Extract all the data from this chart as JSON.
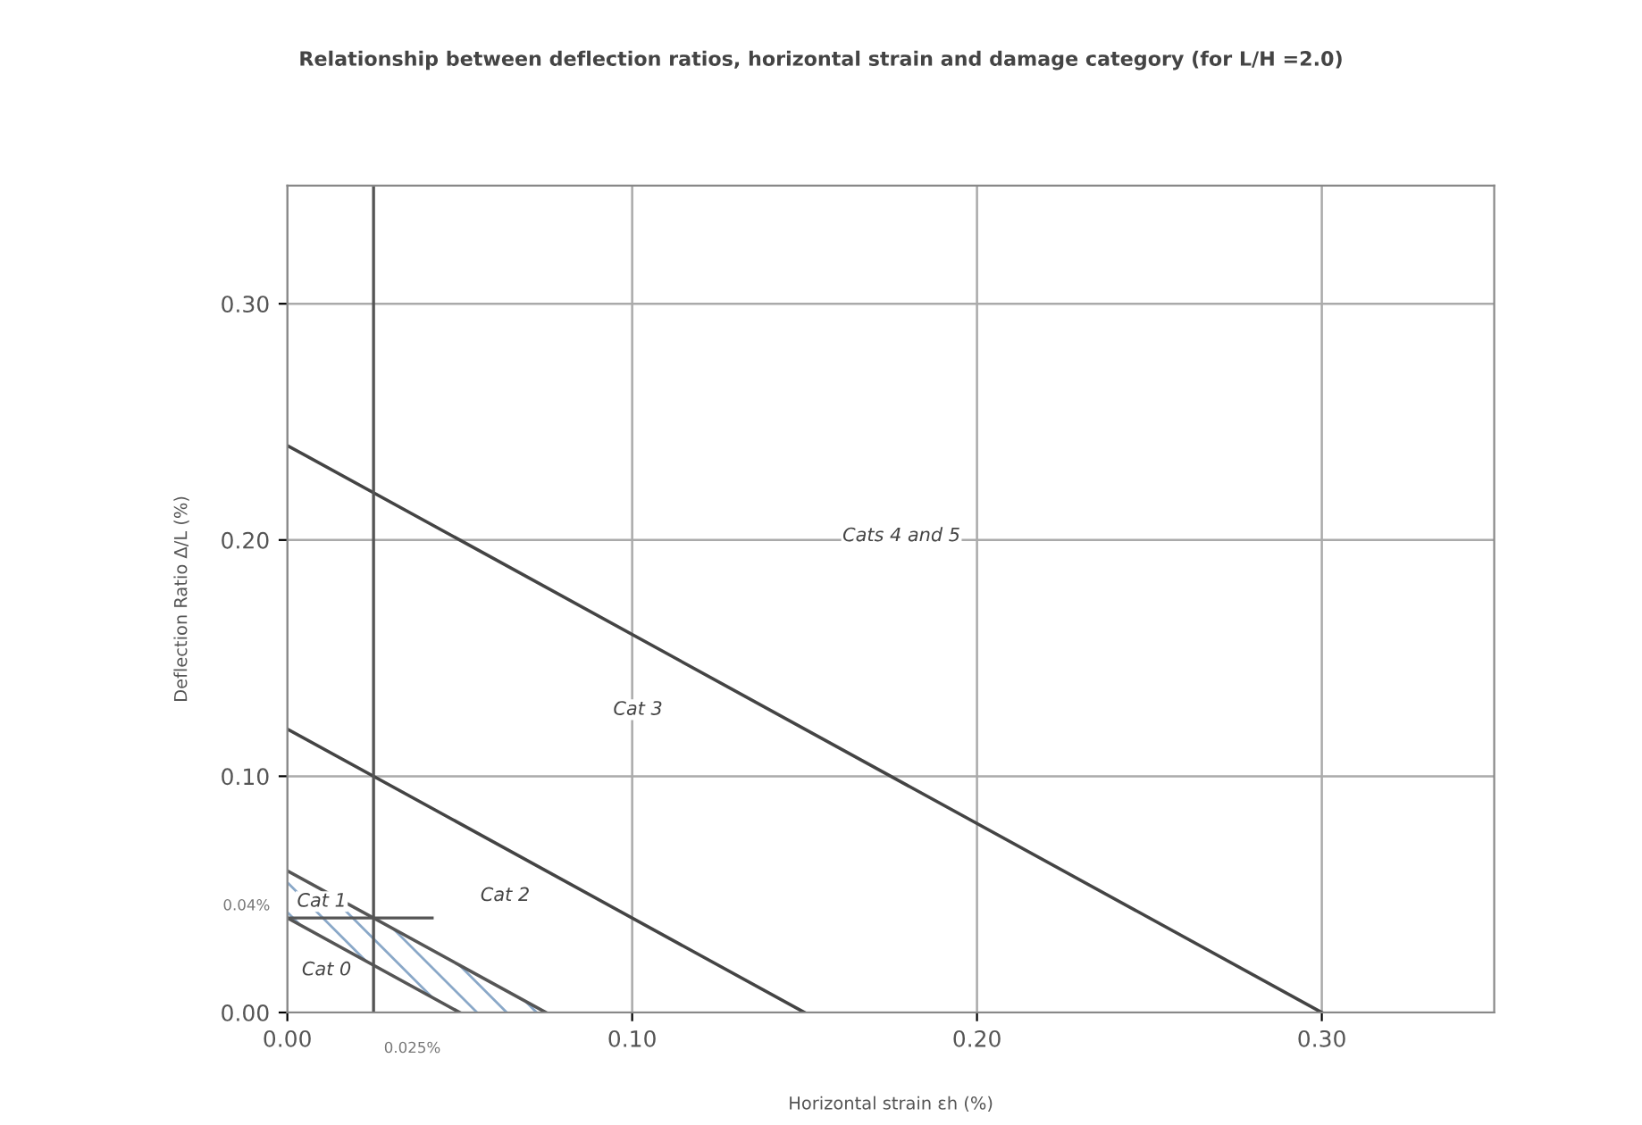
{
  "chart_data": {
    "type": "line",
    "title": "Relationship between deflection ratios, horizontal strain and damage category (for L/H =2.0)",
    "xlabel": "Horizontal strain εh (%)",
    "ylabel": "Deflection Ratio Δ/L (%)",
    "xlim": [
      0,
      0.35
    ],
    "ylim": [
      0,
      0.35
    ],
    "xticks": [
      {
        "value": 0,
        "label": "0.00"
      },
      {
        "value": 0.1,
        "label": "0.10"
      },
      {
        "value": 0.2,
        "label": "0.20"
      },
      {
        "value": 0.3,
        "label": "0.30"
      }
    ],
    "yticks": [
      {
        "value": 0,
        "label": "0.00"
      },
      {
        "value": 0.1,
        "label": "0.10"
      },
      {
        "value": 0.2,
        "label": "0.20"
      },
      {
        "value": 0.3,
        "label": "0.30"
      }
    ],
    "grid": true,
    "legend": false,
    "marker": "none",
    "line_style": "solid",
    "series": [
      {
        "color": "#555555",
        "x": [
          0,
          0.05
        ],
        "values": [
          0.04,
          0
        ]
      },
      {
        "color": "#555555",
        "x": [
          0,
          0.05,
          0.075
        ],
        "values": [
          0.06,
          0.02,
          0
        ],
        "lower": [
          0.04,
          0,
          0
        ],
        "upper": [
          0.06,
          0.02,
          0
        ]
      },
      {
        "color": "#444444",
        "x": [
          0,
          0.15
        ],
        "values": [
          0.12,
          0
        ]
      },
      {
        "color": "#444444",
        "x": [
          0,
          0.3
        ],
        "values": [
          0.24,
          0
        ]
      }
    ],
    "ref_lines": [
      {
        "axis": "y",
        "value": 0.04,
        "label": "0.04%",
        "color": "#555555"
      },
      {
        "axis": "x",
        "value": 0.025,
        "label": "0.025%",
        "color": "#555555"
      }
    ],
    "annotations": [
      "Cat 0",
      "Cat 1",
      "Cat 2",
      "Cat 3",
      "Cats 4 and 5"
    ]
  }
}
